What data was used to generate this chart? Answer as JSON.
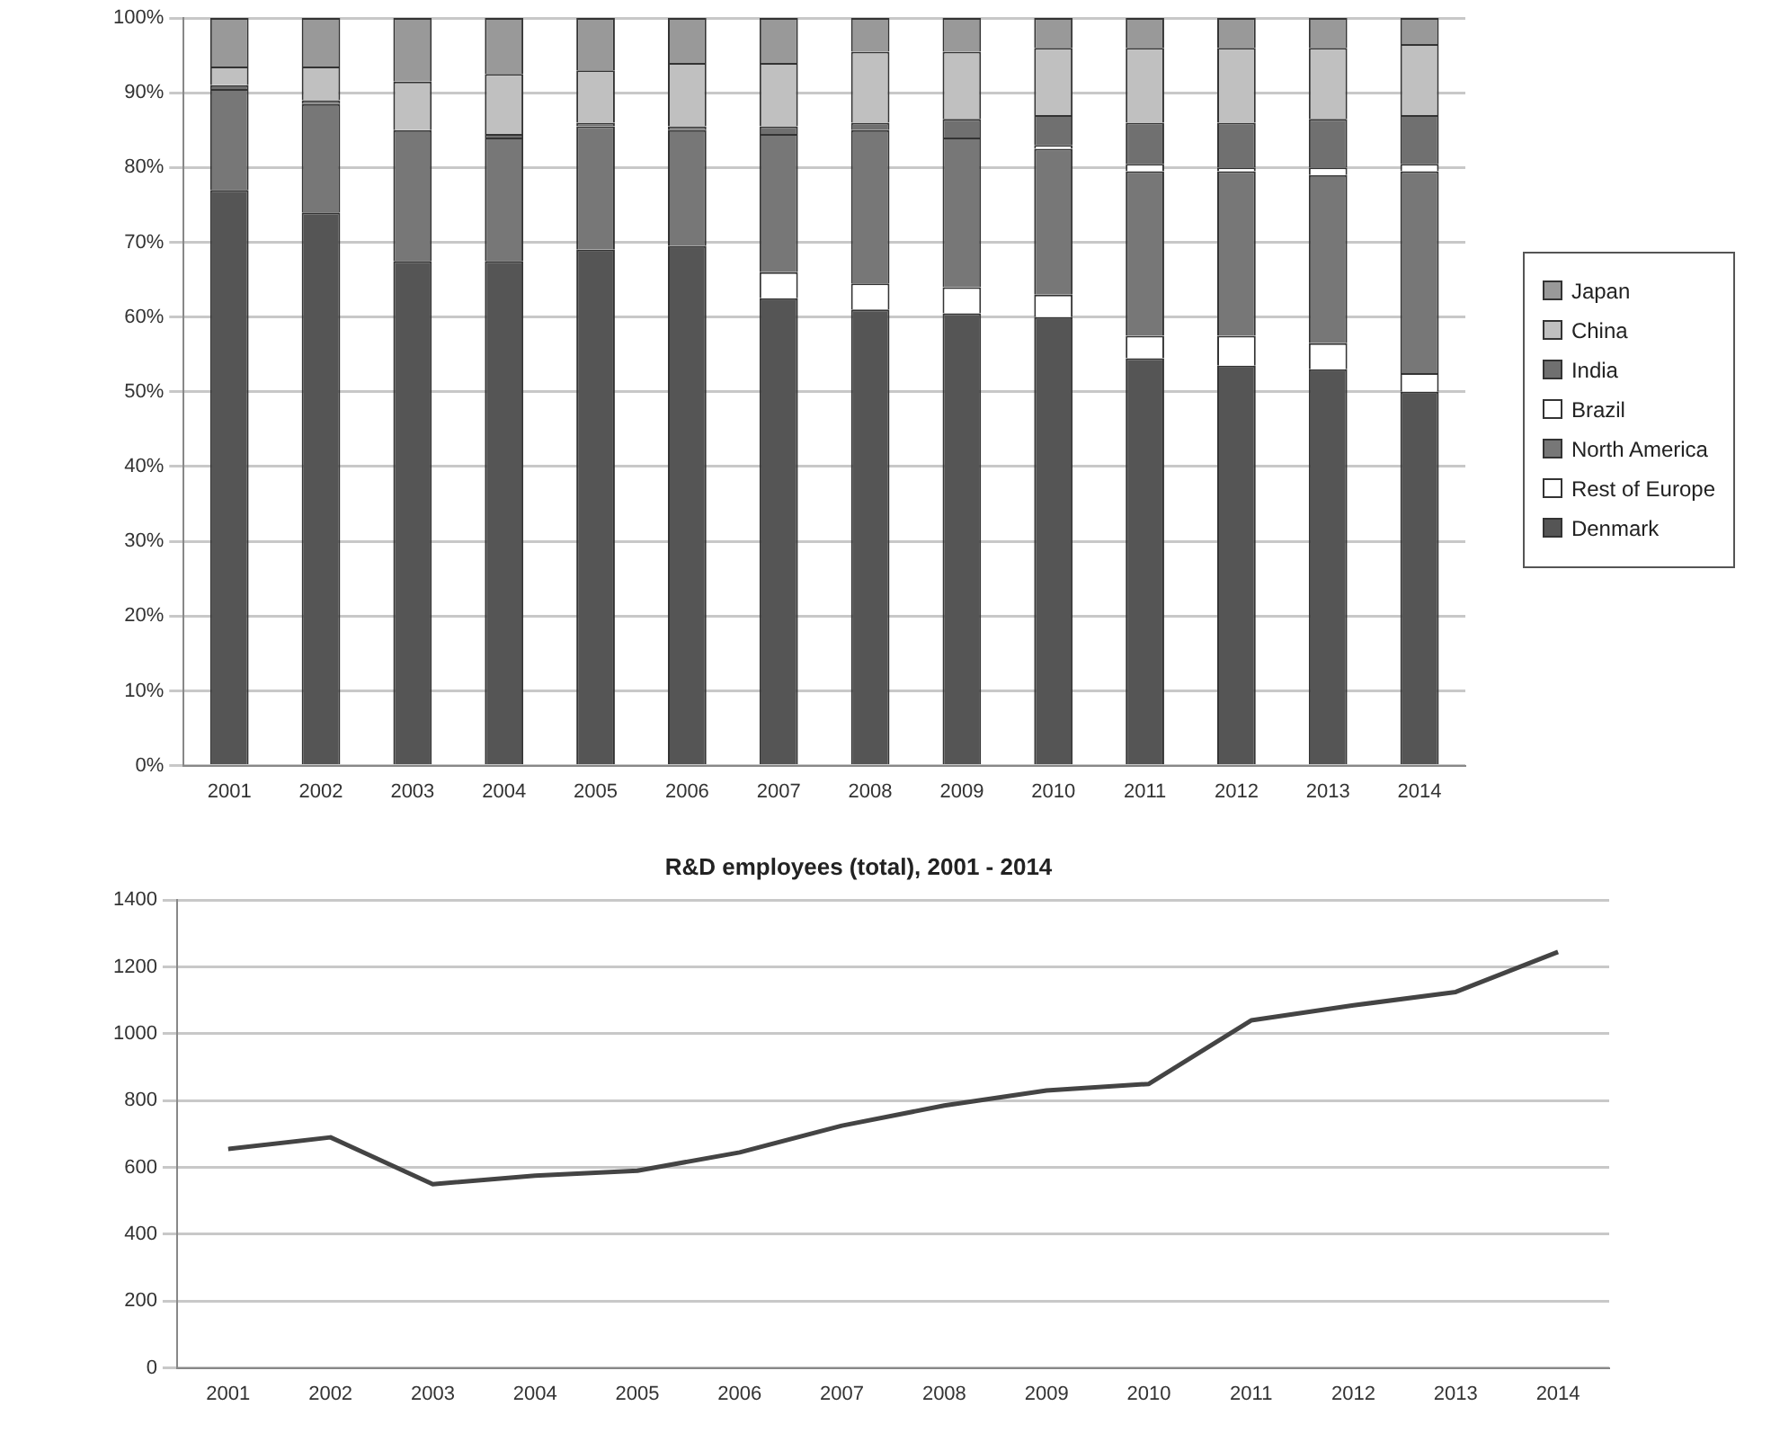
{
  "chart_data": [
    {
      "type": "bar",
      "stacked": true,
      "categories": [
        "2001",
        "2002",
        "2003",
        "2004",
        "2005",
        "2006",
        "2007",
        "2008",
        "2009",
        "2010",
        "2011",
        "2012",
        "2013",
        "2014"
      ],
      "series": [
        {
          "name": "Denmark",
          "color": "#555555",
          "values": [
            77,
            74,
            67.5,
            67.5,
            69,
            69.5,
            62.5,
            61,
            60.5,
            60,
            54.5,
            53.5,
            53,
            50
          ]
        },
        {
          "name": "Rest of Europe",
          "color": "#ffffff",
          "values": [
            0,
            0,
            0,
            0,
            0,
            0,
            3.5,
            3.5,
            3.5,
            3,
            3,
            4,
            3.5,
            2.5
          ]
        },
        {
          "name": "North America",
          "color": "#777777",
          "values": [
            13.5,
            14.5,
            17.5,
            16.5,
            16.5,
            15.5,
            18.5,
            20.5,
            20,
            19.5,
            22,
            22,
            22.5,
            27
          ]
        },
        {
          "name": "Brazil",
          "color": "#ffffff",
          "values": [
            0,
            0,
            0,
            0,
            0,
            0,
            0,
            0,
            0,
            0.5,
            1,
            0.5,
            1,
            1
          ]
        },
        {
          "name": "India",
          "color": "#707070",
          "values": [
            0.5,
            0.5,
            0,
            0.5,
            0.5,
            0.5,
            1,
            1,
            2.5,
            4,
            5.5,
            6,
            6.5,
            6.5
          ]
        },
        {
          "name": "China",
          "color": "#c0c0c0",
          "values": [
            2.5,
            4.5,
            6.5,
            8,
            7,
            8.5,
            8.5,
            9.5,
            9,
            9,
            10,
            10,
            9.5,
            9.5
          ]
        },
        {
          "name": "Japan",
          "color": "#999999",
          "values": [
            6.5,
            6.5,
            8.5,
            7.5,
            7,
            6,
            6,
            4.5,
            4.5,
            4,
            4,
            4,
            4,
            3.5
          ]
        }
      ],
      "ylim": [
        0,
        100
      ],
      "yticks": [
        {
          "value": 0,
          "label": "0%"
        },
        {
          "value": 10,
          "label": "10%"
        },
        {
          "value": 20,
          "label": "20%"
        },
        {
          "value": 30,
          "label": "30%"
        },
        {
          "value": 40,
          "label": "40%"
        },
        {
          "value": 50,
          "label": "50%"
        },
        {
          "value": 60,
          "label": "60%"
        },
        {
          "value": 70,
          "label": "70%"
        },
        {
          "value": 80,
          "label": "80%"
        },
        {
          "value": 90,
          "label": "90%"
        },
        {
          "value": 100,
          "label": "100%"
        }
      ],
      "grid": "y",
      "legend": "right"
    },
    {
      "type": "line",
      "title": "R&D employees (total), 2001 - 2014",
      "categories": [
        "2001",
        "2002",
        "2003",
        "2004",
        "2005",
        "2006",
        "2007",
        "2008",
        "2009",
        "2010",
        "2011",
        "2012",
        "2013",
        "2014"
      ],
      "series": [
        {
          "color": "#444444",
          "values": [
            655,
            690,
            550,
            575,
            590,
            645,
            725,
            785,
            830,
            850,
            1040,
            1085,
            1125,
            1245
          ]
        }
      ],
      "ylim": [
        0,
        1400
      ],
      "yticks": [
        0,
        200,
        400,
        600,
        800,
        1000,
        1200,
        1400
      ],
      "grid": "y",
      "marker": "none"
    }
  ]
}
